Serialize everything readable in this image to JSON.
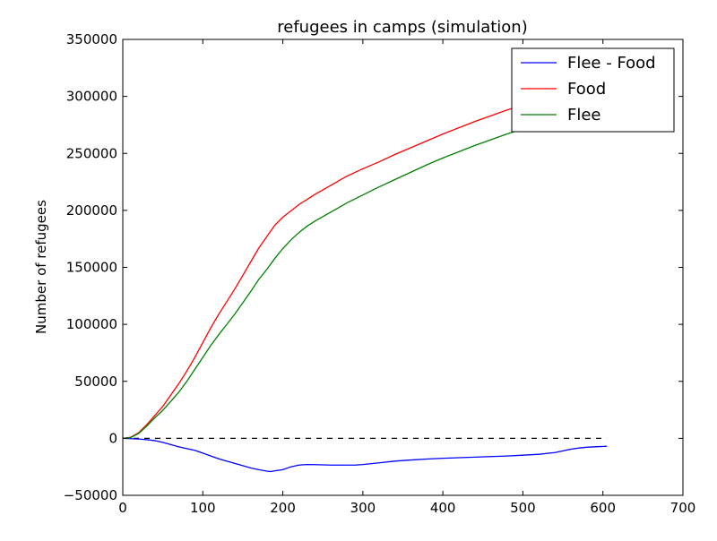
{
  "chart_data": {
    "type": "line",
    "title": "refugees in camps (simulation)",
    "xlabel": "",
    "ylabel": "Number of refugees",
    "xlim": [
      0,
      700
    ],
    "ylim": [
      -50000,
      350000
    ],
    "xticks": [
      0,
      100,
      200,
      300,
      400,
      500,
      600,
      700
    ],
    "yticks": [
      -50000,
      0,
      50000,
      100000,
      150000,
      200000,
      250000,
      300000,
      350000
    ],
    "grid": false,
    "legend_position": "top-right",
    "reference_line": {
      "y": 0,
      "x_start": 0,
      "x_end": 605,
      "style": "dashed",
      "color": "#000000"
    },
    "series": [
      {
        "name": "Flee - Food",
        "color": "#0000ff",
        "x": [
          0,
          10,
          20,
          30,
          40,
          50,
          60,
          70,
          80,
          90,
          100,
          110,
          120,
          130,
          140,
          150,
          160,
          170,
          180,
          185,
          190,
          200,
          210,
          220,
          230,
          240,
          250,
          260,
          270,
          280,
          290,
          300,
          320,
          340,
          360,
          380,
          400,
          420,
          440,
          460,
          480,
          500,
          520,
          540,
          550,
          560,
          570,
          580,
          590,
          605
        ],
        "y": [
          0,
          -300,
          -600,
          -1200,
          -2000,
          -3500,
          -5500,
          -7500,
          -9000,
          -10500,
          -13000,
          -15500,
          -18000,
          -20000,
          -22000,
          -24000,
          -26000,
          -27500,
          -28800,
          -29200,
          -28500,
          -27500,
          -25000,
          -23500,
          -23000,
          -23100,
          -23300,
          -23500,
          -23500,
          -23500,
          -23500,
          -23000,
          -21500,
          -20000,
          -19000,
          -18200,
          -17500,
          -17000,
          -16500,
          -16000,
          -15500,
          -14800,
          -14000,
          -12500,
          -11000,
          -9500,
          -8500,
          -7800,
          -7400,
          -7000
        ]
      },
      {
        "name": "Food",
        "color": "#ff0000",
        "x": [
          0,
          10,
          20,
          30,
          40,
          50,
          60,
          70,
          80,
          90,
          100,
          110,
          120,
          130,
          140,
          150,
          160,
          170,
          180,
          190,
          200,
          220,
          240,
          260,
          280,
          300,
          320,
          340,
          360,
          380,
          400,
          420,
          440,
          460,
          480,
          500,
          520,
          540,
          560,
          580,
          605
        ],
        "y": [
          0,
          1000,
          5000,
          12000,
          20000,
          28000,
          38000,
          48000,
          59000,
          71000,
          84000,
          97000,
          109000,
          120000,
          131000,
          143000,
          155000,
          167000,
          177000,
          187000,
          194000,
          205000,
          214000,
          222000,
          230000,
          236500,
          242500,
          249000,
          255000,
          261000,
          267000,
          272500,
          278000,
          283000,
          288000,
          292500,
          296000,
          300000,
          303500,
          306500,
          310000
        ]
      },
      {
        "name": "Flee",
        "color": "#008000",
        "x": [
          0,
          10,
          20,
          30,
          40,
          50,
          60,
          70,
          80,
          90,
          100,
          110,
          120,
          130,
          140,
          150,
          160,
          170,
          180,
          190,
          200,
          210,
          220,
          230,
          240,
          260,
          280,
          300,
          320,
          340,
          360,
          380,
          400,
          420,
          440,
          460,
          480,
          500,
          520,
          540,
          560,
          580,
          605
        ],
        "y": [
          0,
          700,
          4400,
          10800,
          18000,
          24500,
          32500,
          40500,
          50000,
          60500,
          71000,
          81500,
          91000,
          100000,
          109000,
          119000,
          129000,
          139500,
          148200,
          157800,
          166500,
          174000,
          180500,
          186000,
          190500,
          198500,
          206500,
          213500,
          220500,
          227000,
          233500,
          240000,
          246000,
          251500,
          257000,
          262000,
          267000,
          271500,
          276000,
          280000,
          284500,
          289000,
          293500
        ]
      }
    ]
  }
}
